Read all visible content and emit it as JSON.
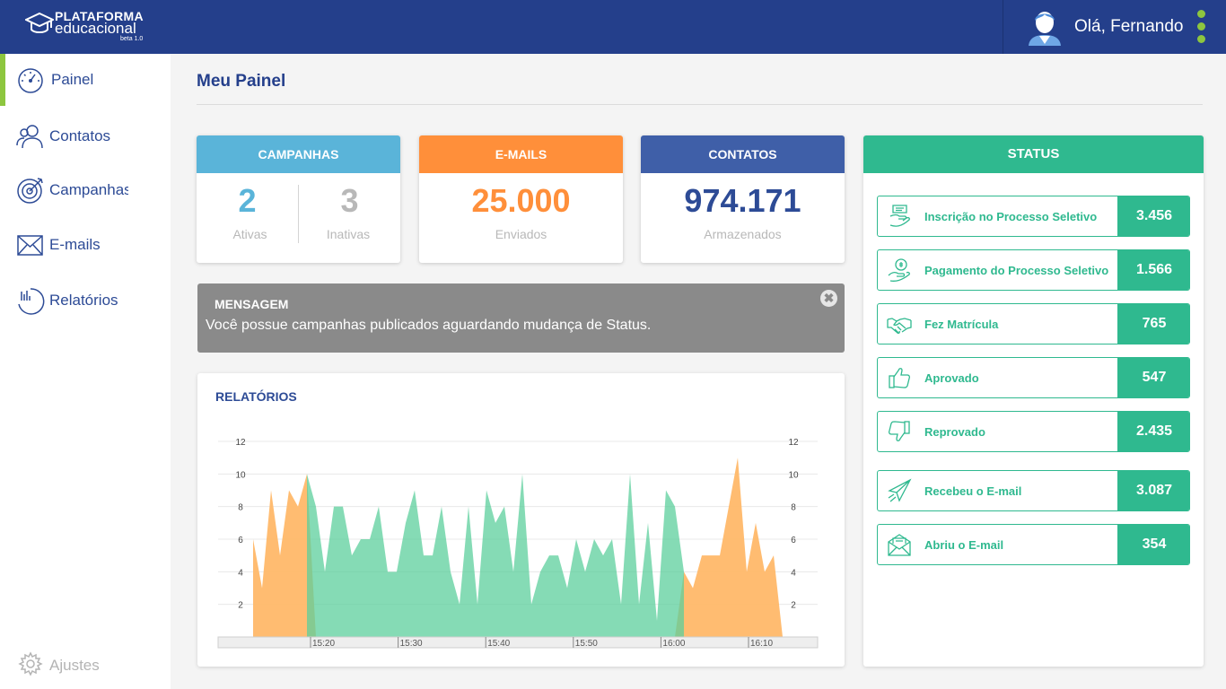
{
  "brand": {
    "line1": "PLATAFORMA",
    "line2": "educacional",
    "version": "beta 1.0"
  },
  "user": {
    "greeting": "Olá, Fernando"
  },
  "sidebar": {
    "items": [
      {
        "label": "Painel"
      },
      {
        "label": "Contatos"
      },
      {
        "label": "Campanhas"
      },
      {
        "label": "E-mails"
      },
      {
        "label": "Relatórios"
      }
    ],
    "settings_label": "Ajustes"
  },
  "page": {
    "title": "Meu Painel"
  },
  "cards": {
    "campanhas": {
      "title": "CAMPANHAS",
      "ativas_value": "2",
      "ativas_label": "Ativas",
      "inativas_value": "3",
      "inativas_label": "Inativas",
      "color": "#5ab4d9"
    },
    "emails": {
      "title": "E-MAILS",
      "value": "25.000",
      "label": "Enviados",
      "color": "#ff8f3a"
    },
    "contatos": {
      "title": "CONTATOS",
      "value": "974.171",
      "label": "Armazenados",
      "color": "#3f5fa8"
    }
  },
  "message": {
    "title": "MENSAGEM",
    "body": "Você possue campanhas publicados aguardando mudança de Status.",
    "close_glyph": "✖"
  },
  "reports": {
    "title": "RELATÓRIOS"
  },
  "chart_data": {
    "type": "area",
    "title": "",
    "y_ticks": [
      "2",
      "4",
      "6",
      "8",
      "10",
      "12"
    ],
    "x_ticks": [
      "15:20",
      "15:30",
      "15:40",
      "15:50",
      "16:00",
      "16:10"
    ],
    "ylim": [
      0,
      12
    ],
    "series": [
      {
        "color": "#ffb869",
        "segments": [
          {
            "x": [
              0,
              1,
              2,
              3,
              4,
              5,
              6,
              7
            ],
            "y": [
              6,
              3,
              9,
              5,
              9,
              8,
              10,
              0
            ]
          },
          {
            "x": [
              47,
              48,
              49,
              50,
              51,
              52,
              53,
              54,
              55,
              56,
              57,
              58,
              59
            ],
            "y": [
              0,
              4,
              3,
              5,
              5,
              5,
              8,
              11,
              4,
              7,
              4,
              5,
              0
            ]
          }
        ]
      },
      {
        "color": "#5ccf9c",
        "segments": [
          {
            "x": [
              6,
              7,
              8,
              9,
              10,
              11,
              12,
              13,
              14,
              15,
              16,
              17,
              18,
              19,
              20,
              21,
              22,
              23,
              24,
              25,
              26,
              27,
              28,
              29,
              30,
              31,
              32,
              33,
              34,
              35,
              36,
              37,
              38,
              39,
              40,
              41,
              42,
              43,
              44,
              45,
              46,
              47,
              48
            ],
            "y": [
              10,
              8,
              4,
              8,
              8,
              5,
              6,
              6,
              8,
              4,
              4,
              7,
              9,
              5,
              5,
              8,
              4,
              2,
              8,
              2,
              9,
              7,
              8,
              4,
              10,
              2,
              4,
              5,
              5,
              3,
              6,
              4,
              6,
              5,
              6,
              2,
              10,
              2,
              7,
              1,
              9,
              8,
              4
            ]
          }
        ]
      }
    ]
  },
  "status": {
    "title": "STATUS",
    "accent": "#2fb98f",
    "items": [
      {
        "label": "Inscrição no Processo Seletivo",
        "value": "3.456",
        "icon": "hand-paper-icon"
      },
      {
        "label": "Pagamento do Processo Seletivo",
        "value": "1.566",
        "icon": "hand-coin-icon"
      },
      {
        "label": "Fez Matrícula",
        "value": "765",
        "icon": "handshake-icon"
      },
      {
        "label": "Aprovado",
        "value": "547",
        "icon": "thumbs-up-icon"
      },
      {
        "label": "Reprovado",
        "value": "2.435",
        "icon": "thumbs-down-icon"
      },
      {
        "label": "Recebeu o E-mail",
        "value": "3.087",
        "icon": "paper-plane-icon"
      },
      {
        "label": "Abriu o E-mail",
        "value": "354",
        "icon": "open-envelope-icon"
      }
    ]
  }
}
